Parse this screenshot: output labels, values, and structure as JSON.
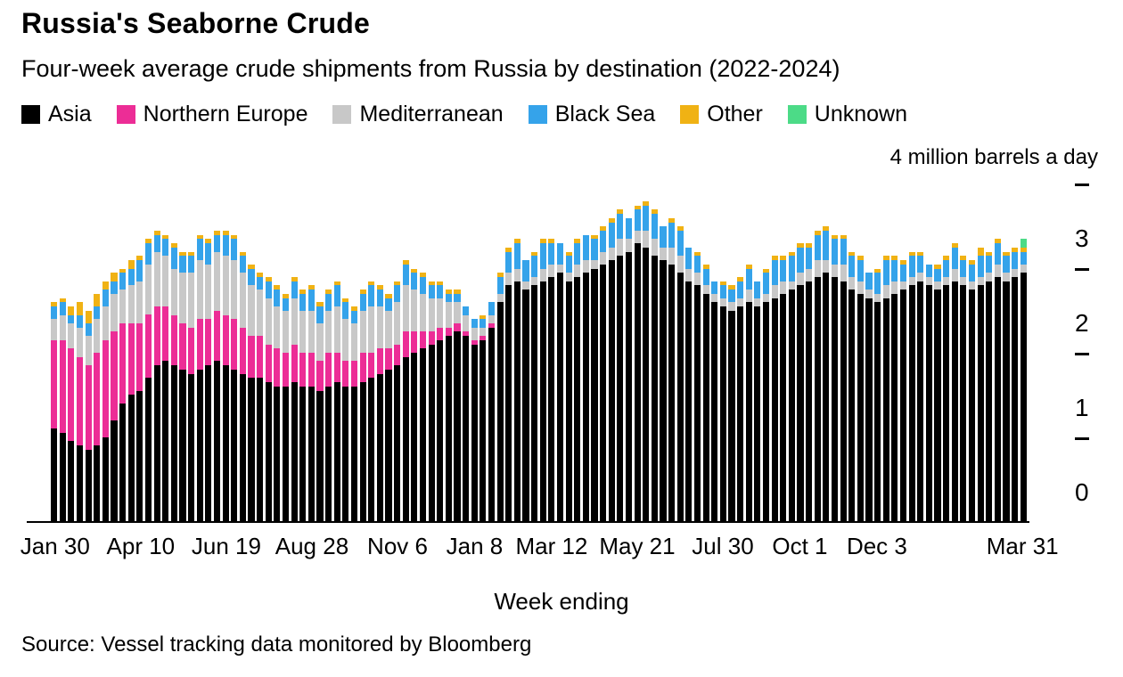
{
  "source_text": "Source: Vessel tracking data monitored by Bloomberg",
  "chart_data": {
    "type": "bar",
    "stacked": true,
    "title": "Russia's Seaborne Crude",
    "subtitle": "Four-week average crude shipments from Russia by destination (2022-2024)",
    "unit_label": "4 million barrels a day",
    "xlabel": "Week ending",
    "ylim": [
      0,
      4
    ],
    "y_tick_labels": [
      0,
      1,
      2,
      3
    ],
    "y_dash_values": [
      1,
      2,
      3,
      4
    ],
    "x_count": 114,
    "x_tick_labels": [
      {
        "index": 0,
        "label": "Jan 30"
      },
      {
        "index": 10,
        "label": "Apr 10"
      },
      {
        "index": 20,
        "label": "Jun 19"
      },
      {
        "index": 30,
        "label": "Aug 28"
      },
      {
        "index": 40,
        "label": "Nov 6"
      },
      {
        "index": 49,
        "label": "Jan 8"
      },
      {
        "index": 58,
        "label": "Mar 12"
      },
      {
        "index": 68,
        "label": "May 21"
      },
      {
        "index": 78,
        "label": "Jul 30"
      },
      {
        "index": 87,
        "label": "Oct 1"
      },
      {
        "index": 96,
        "label": "Dec 3"
      },
      {
        "index": 113,
        "label": "Mar 31"
      }
    ],
    "series": [
      {
        "key": "asia",
        "name": "Asia",
        "color": "#000000",
        "values": [
          1.1,
          1.05,
          0.95,
          0.9,
          0.85,
          0.9,
          1.0,
          1.2,
          1.4,
          1.5,
          1.55,
          1.7,
          1.85,
          1.9,
          1.85,
          1.8,
          1.75,
          1.8,
          1.85,
          1.9,
          1.85,
          1.8,
          1.75,
          1.7,
          1.7,
          1.65,
          1.6,
          1.6,
          1.65,
          1.6,
          1.6,
          1.55,
          1.6,
          1.65,
          1.6,
          1.6,
          1.65,
          1.7,
          1.75,
          1.8,
          1.85,
          1.95,
          2.0,
          2.05,
          2.1,
          2.15,
          2.2,
          2.25,
          2.2,
          2.1,
          2.15,
          2.3,
          2.6,
          2.8,
          2.85,
          2.75,
          2.8,
          2.85,
          2.9,
          2.95,
          2.85,
          2.9,
          2.95,
          3.0,
          3.05,
          3.1,
          3.15,
          3.2,
          3.3,
          3.25,
          3.15,
          3.1,
          3.05,
          2.95,
          2.85,
          2.8,
          2.7,
          2.6,
          2.55,
          2.5,
          2.55,
          2.6,
          2.55,
          2.6,
          2.65,
          2.7,
          2.75,
          2.8,
          2.85,
          2.9,
          2.95,
          2.9,
          2.85,
          2.75,
          2.7,
          2.65,
          2.6,
          2.65,
          2.7,
          2.75,
          2.8,
          2.85,
          2.8,
          2.75,
          2.8,
          2.85,
          2.8,
          2.75,
          2.8,
          2.85,
          2.9,
          2.85,
          2.9,
          2.95
        ]
      },
      {
        "key": "northern-europe",
        "name": "Northern Europe",
        "color": "#ec2d96",
        "values": [
          1.05,
          1.1,
          1.1,
          1.05,
          1.0,
          1.1,
          1.15,
          1.05,
          0.95,
          0.85,
          0.8,
          0.75,
          0.7,
          0.65,
          0.6,
          0.55,
          0.55,
          0.6,
          0.55,
          0.6,
          0.6,
          0.6,
          0.55,
          0.5,
          0.5,
          0.45,
          0.45,
          0.4,
          0.45,
          0.4,
          0.4,
          0.35,
          0.4,
          0.35,
          0.3,
          0.3,
          0.35,
          0.3,
          0.3,
          0.25,
          0.25,
          0.3,
          0.25,
          0.2,
          0.15,
          0.15,
          0.1,
          0.1,
          0.05,
          0.05,
          0.05,
          0.05,
          0,
          0,
          0,
          0,
          0,
          0,
          0,
          0,
          0,
          0,
          0,
          0,
          0,
          0,
          0,
          0,
          0,
          0,
          0,
          0,
          0,
          0,
          0,
          0,
          0,
          0,
          0,
          0,
          0,
          0,
          0,
          0,
          0,
          0,
          0,
          0,
          0,
          0,
          0,
          0,
          0,
          0,
          0,
          0,
          0,
          0,
          0,
          0,
          0,
          0,
          0,
          0,
          0,
          0,
          0,
          0,
          0,
          0,
          0,
          0,
          0,
          0
        ]
      },
      {
        "key": "mediterranean",
        "name": "Mediterranean",
        "color": "#c8c8c8",
        "values": [
          0.25,
          0.3,
          0.3,
          0.35,
          0.35,
          0.4,
          0.4,
          0.45,
          0.4,
          0.45,
          0.5,
          0.6,
          0.65,
          0.6,
          0.55,
          0.6,
          0.65,
          0.7,
          0.65,
          0.7,
          0.7,
          0.7,
          0.65,
          0.6,
          0.55,
          0.55,
          0.5,
          0.5,
          0.55,
          0.5,
          0.5,
          0.45,
          0.5,
          0.55,
          0.5,
          0.45,
          0.5,
          0.55,
          0.5,
          0.45,
          0.5,
          0.55,
          0.5,
          0.45,
          0.4,
          0.35,
          0.3,
          0.25,
          0.2,
          0.15,
          0.1,
          0.1,
          0.1,
          0.15,
          0.15,
          0.1,
          0.1,
          0.15,
          0.15,
          0.1,
          0.1,
          0.15,
          0.15,
          0.1,
          0.15,
          0.15,
          0.2,
          0.15,
          0.15,
          0.2,
          0.2,
          0.15,
          0.2,
          0.2,
          0.15,
          0.15,
          0.1,
          0.1,
          0.1,
          0.1,
          0.1,
          0.15,
          0.1,
          0.1,
          0.15,
          0.15,
          0.1,
          0.15,
          0.15,
          0.2,
          0.15,
          0.15,
          0.2,
          0.15,
          0.15,
          0.1,
          0.1,
          0.15,
          0.15,
          0.1,
          0.1,
          0.1,
          0.1,
          0.1,
          0.1,
          0.15,
          0.1,
          0.1,
          0.1,
          0.1,
          0.15,
          0.1,
          0.1,
          0.1
        ]
      },
      {
        "key": "black-sea",
        "name": "Black Sea",
        "color": "#35a3ea",
        "values": [
          0.15,
          0.15,
          0.1,
          0.15,
          0.15,
          0.15,
          0.2,
          0.15,
          0.2,
          0.2,
          0.25,
          0.25,
          0.2,
          0.2,
          0.25,
          0.2,
          0.2,
          0.25,
          0.25,
          0.2,
          0.25,
          0.25,
          0.2,
          0.2,
          0.15,
          0.2,
          0.2,
          0.15,
          0.2,
          0.2,
          0.25,
          0.2,
          0.2,
          0.25,
          0.2,
          0.15,
          0.2,
          0.25,
          0.2,
          0.15,
          0.2,
          0.25,
          0.2,
          0.2,
          0.15,
          0.15,
          0.1,
          0.1,
          0.1,
          0.1,
          0.1,
          0.15,
          0.2,
          0.25,
          0.3,
          0.25,
          0.25,
          0.3,
          0.25,
          0.25,
          0.2,
          0.25,
          0.3,
          0.25,
          0.25,
          0.3,
          0.3,
          0.25,
          0.25,
          0.3,
          0.3,
          0.25,
          0.3,
          0.3,
          0.25,
          0.2,
          0.2,
          0.15,
          0.15,
          0.15,
          0.2,
          0.25,
          0.2,
          0.25,
          0.3,
          0.25,
          0.3,
          0.3,
          0.25,
          0.3,
          0.35,
          0.3,
          0.3,
          0.25,
          0.25,
          0.2,
          0.25,
          0.3,
          0.25,
          0.2,
          0.25,
          0.2,
          0.15,
          0.15,
          0.2,
          0.25,
          0.2,
          0.2,
          0.25,
          0.2,
          0.25,
          0.2,
          0.2,
          0.15
        ]
      },
      {
        "key": "other",
        "name": "Other",
        "color": "#f0b214",
        "values": [
          0.05,
          0.05,
          0.1,
          0.15,
          0.15,
          0.15,
          0.1,
          0.1,
          0.05,
          0.1,
          0.05,
          0.05,
          0.05,
          0.05,
          0.05,
          0.05,
          0.05,
          0.05,
          0.05,
          0.05,
          0.05,
          0.05,
          0.05,
          0.05,
          0.05,
          0.05,
          0.05,
          0.05,
          0.05,
          0.05,
          0.05,
          0.05,
          0.05,
          0.05,
          0.05,
          0.05,
          0.05,
          0.05,
          0.05,
          0.05,
          0.05,
          0.05,
          0.05,
          0.05,
          0.05,
          0.05,
          0.05,
          0.05,
          0,
          0,
          0.05,
          0,
          0.05,
          0.05,
          0.05,
          0,
          0.05,
          0.05,
          0.05,
          0,
          0.05,
          0.05,
          0,
          0.05,
          0.05,
          0.05,
          0.05,
          0,
          0.05,
          0.05,
          0.05,
          0,
          0.05,
          0.05,
          0,
          0.05,
          0.05,
          0,
          0.05,
          0.05,
          0.05,
          0.05,
          0,
          0.05,
          0.05,
          0.05,
          0.05,
          0.05,
          0.05,
          0.05,
          0.05,
          0.05,
          0.05,
          0.05,
          0.05,
          0,
          0.05,
          0.05,
          0.05,
          0.05,
          0.05,
          0.05,
          0,
          0.05,
          0.05,
          0.05,
          0.05,
          0.05,
          0.1,
          0.05,
          0.05,
          0.05,
          0.05,
          0.05
        ]
      },
      {
        "key": "unknown",
        "name": "Unknown",
        "color": "#4cdb87",
        "values": [
          0,
          0,
          0,
          0,
          0,
          0,
          0,
          0,
          0,
          0,
          0,
          0,
          0,
          0,
          0,
          0,
          0,
          0,
          0,
          0,
          0,
          0,
          0,
          0,
          0,
          0,
          0,
          0,
          0,
          0,
          0,
          0,
          0,
          0,
          0,
          0,
          0,
          0,
          0,
          0,
          0,
          0,
          0,
          0,
          0,
          0,
          0,
          0,
          0,
          0,
          0,
          0,
          0,
          0,
          0,
          0,
          0,
          0,
          0,
          0,
          0,
          0,
          0,
          0,
          0,
          0,
          0,
          0,
          0,
          0,
          0,
          0,
          0,
          0,
          0,
          0,
          0,
          0,
          0,
          0,
          0,
          0,
          0,
          0,
          0,
          0,
          0,
          0,
          0,
          0,
          0,
          0,
          0,
          0,
          0,
          0,
          0,
          0,
          0,
          0,
          0,
          0,
          0,
          0,
          0,
          0,
          0,
          0,
          0,
          0,
          0,
          0,
          0,
          0.1
        ]
      }
    ]
  }
}
